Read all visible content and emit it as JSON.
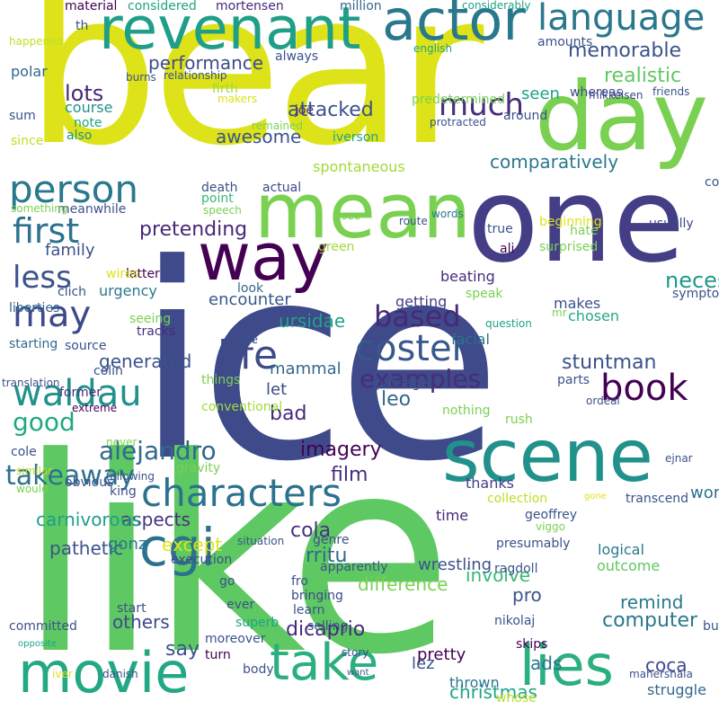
{
  "words": [
    {
      "t": "ice",
      "c": "#3e4a89"
    },
    {
      "t": "like",
      "c": "#5ec962"
    },
    {
      "t": "bear",
      "c": "#dde318"
    },
    {
      "t": "one",
      "c": "#433e85"
    },
    {
      "t": "mean",
      "c": "#7ad151"
    },
    {
      "t": "scene",
      "c": "#21918c"
    },
    {
      "t": "day",
      "c": "#7ad151"
    },
    {
      "t": "revenant",
      "c": "#1f9f88"
    },
    {
      "t": "actor",
      "c": "#2a788e"
    },
    {
      "t": "way",
      "c": "#440154"
    },
    {
      "t": "movie",
      "c": "#22a884"
    },
    {
      "t": "take",
      "c": "#2ab07f"
    },
    {
      "t": "lies",
      "c": "#2ab07f"
    },
    {
      "t": "cgi",
      "c": "#2c728e"
    },
    {
      "t": "characters",
      "c": "#2c728e"
    },
    {
      "t": "person",
      "c": "#2a788e"
    },
    {
      "t": "language",
      "c": "#2a788e"
    },
    {
      "t": "first",
      "c": "#2c728e"
    },
    {
      "t": "may",
      "c": "#3e4a89"
    },
    {
      "t": "life",
      "c": "#3e4a89"
    },
    {
      "t": "waldau",
      "c": "#21918c"
    },
    {
      "t": "coster",
      "c": "#38588c"
    },
    {
      "t": "book",
      "c": "#440154"
    },
    {
      "t": "based",
      "c": "#482878"
    },
    {
      "t": "less",
      "c": "#3b528b"
    },
    {
      "t": "much",
      "c": "#472d7b"
    },
    {
      "t": "takeaway",
      "c": "#2c728e"
    },
    {
      "t": "examples",
      "c": "#472d7b"
    },
    {
      "t": "alejandro",
      "c": "#31688e"
    },
    {
      "t": "good",
      "c": "#22a884"
    },
    {
      "t": "memorable",
      "c": "#3b528b"
    },
    {
      "t": "realistic",
      "c": "#5ec962"
    },
    {
      "t": "comparatively",
      "c": "#2a788e"
    },
    {
      "t": "awesome",
      "c": "#3b528b"
    },
    {
      "t": "attacked",
      "c": "#3b528b"
    },
    {
      "t": "pretending",
      "c": "#482878"
    },
    {
      "t": "stuntman",
      "c": "#3b528b"
    },
    {
      "t": "mammal",
      "c": "#31688e"
    },
    {
      "t": "ursidae",
      "c": "#20a386"
    },
    {
      "t": "generated",
      "c": "#3b528b"
    },
    {
      "t": "bad",
      "c": "#472d7b"
    },
    {
      "t": "family",
      "c": "#3b528b"
    },
    {
      "t": "lots",
      "c": "#482878"
    },
    {
      "t": "performance",
      "c": "#3e4a89"
    },
    {
      "t": "encounter",
      "c": "#38588c"
    },
    {
      "t": "necessarily",
      "c": "#1f9a8a"
    },
    {
      "t": "dicaprio",
      "c": "#482878"
    },
    {
      "t": "computer",
      "c": "#2a788e"
    },
    {
      "t": "remind",
      "c": "#2a788e"
    },
    {
      "t": "involve",
      "c": "#37b878"
    },
    {
      "t": "except",
      "c": "#dde318"
    },
    {
      "t": "aspects",
      "c": "#46327e"
    },
    {
      "t": "carnivorous",
      "c": "#1f9f88"
    },
    {
      "t": "pathetic",
      "c": "#3b528b"
    },
    {
      "t": "others",
      "c": "#3e4a89"
    },
    {
      "t": "say",
      "c": "#3b528b"
    },
    {
      "t": "wrestling",
      "c": "#3b528b"
    },
    {
      "t": "difference",
      "c": "#7ad151"
    },
    {
      "t": "leo",
      "c": "#31688e"
    },
    {
      "t": "let",
      "c": "#3e4a89"
    },
    {
      "t": "film",
      "c": "#472d7b"
    },
    {
      "t": "imagery",
      "c": "#440154"
    },
    {
      "t": "cola",
      "c": "#46327e"
    },
    {
      "t": "rritu",
      "c": "#31688e"
    },
    {
      "t": "gonz",
      "c": "#2a788e"
    },
    {
      "t": "pro",
      "c": "#3b528b"
    },
    {
      "t": "ads",
      "c": "#2c728e"
    },
    {
      "t": "coca",
      "c": "#3e4a89"
    },
    {
      "t": "christmas",
      "c": "#20a386"
    },
    {
      "t": "lez",
      "c": "#3b528b"
    },
    {
      "t": "pretty",
      "c": "#440154"
    },
    {
      "t": "worse",
      "c": "#2c728e"
    },
    {
      "t": "logical",
      "c": "#2a788e"
    },
    {
      "t": "outcome",
      "c": "#5ec962"
    },
    {
      "t": "thanks",
      "c": "#433e85"
    },
    {
      "t": "time",
      "c": "#482878"
    },
    {
      "t": "thrown",
      "c": "#2a788e"
    },
    {
      "t": "struggle",
      "c": "#31688e"
    },
    {
      "t": "facial",
      "c": "#2c728e"
    },
    {
      "t": "getting",
      "c": "#433e85"
    },
    {
      "t": "makes",
      "c": "#3b528b"
    },
    {
      "t": "chosen",
      "c": "#22a884"
    },
    {
      "t": "beating",
      "c": "#472d7b"
    },
    {
      "t": "polar",
      "c": "#31688e"
    },
    {
      "t": "course",
      "c": "#21918c"
    },
    {
      "t": "sum",
      "c": "#3b528b"
    },
    {
      "t": "also",
      "c": "#21918c"
    },
    {
      "t": "note",
      "c": "#20a386"
    },
    {
      "t": "seen",
      "c": "#1f9f88"
    },
    {
      "t": "around",
      "c": "#3b528b"
    },
    {
      "t": "whereas",
      "c": "#3e4a89"
    },
    {
      "t": "amounts",
      "c": "#3b528b"
    },
    {
      "t": "considered",
      "c": "#20a386"
    },
    {
      "t": "material",
      "c": "#440154"
    },
    {
      "t": "mortensen",
      "c": "#482878"
    },
    {
      "t": "million",
      "c": "#31688e"
    },
    {
      "t": "always",
      "c": "#3b528b"
    },
    {
      "t": "joe",
      "c": "#472d7b"
    },
    {
      "t": "iverson",
      "c": "#20a386"
    },
    {
      "t": "spontaneous",
      "c": "#a0da39"
    },
    {
      "t": "actual",
      "c": "#3e4a89"
    },
    {
      "t": "death",
      "c": "#3b528b"
    },
    {
      "t": "point",
      "c": "#37b878"
    },
    {
      "t": "speech",
      "c": "#7ad151"
    },
    {
      "t": "meanwhile",
      "c": "#3b528b"
    },
    {
      "t": "latter",
      "c": "#440154"
    },
    {
      "t": "urgency",
      "c": "#2a788e"
    },
    {
      "t": "wires",
      "c": "#dde318"
    },
    {
      "t": "liberties",
      "c": "#31688e"
    },
    {
      "t": "clich",
      "c": "#3b528b"
    },
    {
      "t": "look",
      "c": "#31688e"
    },
    {
      "t": "tracks",
      "c": "#472d7b"
    },
    {
      "t": "starting",
      "c": "#31688e"
    },
    {
      "t": "source",
      "c": "#3b528b"
    },
    {
      "t": "colin",
      "c": "#3b528b"
    },
    {
      "t": "things",
      "c": "#7ad151"
    },
    {
      "t": "former",
      "c": "#472d7b"
    },
    {
      "t": "extreme",
      "c": "#440154"
    },
    {
      "t": "conventional",
      "c": "#a0da39"
    },
    {
      "t": "passage",
      "c": "#3b528b"
    },
    {
      "t": "nothing",
      "c": "#7ad151"
    },
    {
      "t": "rush",
      "c": "#7ad151"
    },
    {
      "t": "parts",
      "c": "#3b528b"
    },
    {
      "t": "symptomatic",
      "c": "#3b528b"
    },
    {
      "t": "question",
      "c": "#20a386"
    },
    {
      "t": "usually",
      "c": "#3e4a89"
    },
    {
      "t": "consider",
      "c": "#3b528b"
    },
    {
      "t": "hate",
      "c": "#7ad151"
    },
    {
      "t": "ali",
      "c": "#440154"
    },
    {
      "t": "true",
      "c": "#3b528b"
    },
    {
      "t": "surprised",
      "c": "#7ad151"
    },
    {
      "t": "beginning",
      "c": "#dde318"
    },
    {
      "t": "predetermined",
      "c": "#7ad151"
    },
    {
      "t": "mikkelsen",
      "c": "#3e4a89"
    },
    {
      "t": "protracted",
      "c": "#3b528b"
    },
    {
      "t": "words",
      "c": "#2a788e"
    },
    {
      "t": "friends",
      "c": "#3b528b"
    },
    {
      "t": "relationship",
      "c": "#3b528b"
    },
    {
      "t": "firth",
      "c": "#a0da39"
    },
    {
      "t": "makers",
      "c": "#dde318"
    },
    {
      "t": "remained",
      "c": "#7ad151"
    },
    {
      "t": "burns",
      "c": "#3b528b"
    },
    {
      "t": "happened",
      "c": "#bddf26"
    },
    {
      "t": "th",
      "c": "#3b528b"
    },
    {
      "t": "english",
      "c": "#20a386"
    },
    {
      "t": "considerably",
      "c": "#20a386"
    },
    {
      "t": "since",
      "c": "#bddf26"
    },
    {
      "t": "something",
      "c": "#7ad151"
    },
    {
      "t": "see",
      "c": "#7ad151"
    },
    {
      "t": "green",
      "c": "#a0da39"
    },
    {
      "t": "route",
      "c": "#3b528b"
    },
    {
      "t": "speak",
      "c": "#7ad151"
    },
    {
      "t": "mr",
      "c": "#7ad151"
    },
    {
      "t": "trite",
      "c": "#3b528b"
    },
    {
      "t": "seeing",
      "c": "#7ad151"
    },
    {
      "t": "ordeal",
      "c": "#3b528b"
    },
    {
      "t": "translation",
      "c": "#3b528b"
    },
    {
      "t": "cole",
      "c": "#3b528b"
    },
    {
      "t": "never",
      "c": "#7ad151"
    },
    {
      "t": "similar",
      "c": "#bddf26"
    },
    {
      "t": "following",
      "c": "#3b528b"
    },
    {
      "t": "gravity",
      "c": "#7ad151"
    },
    {
      "t": "king",
      "c": "#3b528b"
    },
    {
      "t": "obvious",
      "c": "#3b528b"
    },
    {
      "t": "would",
      "c": "#7ad151"
    },
    {
      "t": "execution",
      "c": "#3e4a89"
    },
    {
      "t": "apparently",
      "c": "#3b528b"
    },
    {
      "t": "collection",
      "c": "#bddf26"
    },
    {
      "t": "transcend",
      "c": "#3b528b"
    },
    {
      "t": "gone",
      "c": "#dde318"
    },
    {
      "t": "viggo",
      "c": "#7ad151"
    },
    {
      "t": "geoffrey",
      "c": "#3b528b"
    },
    {
      "t": "ejnar",
      "c": "#3b528b"
    },
    {
      "t": "genre",
      "c": "#3b528b"
    },
    {
      "t": "presumably",
      "c": "#3b528b"
    },
    {
      "t": "ragdoll",
      "c": "#3b528b"
    },
    {
      "t": "fro",
      "c": "#3b528b"
    },
    {
      "t": "bringing",
      "c": "#3e4a89"
    },
    {
      "t": "learn",
      "c": "#3b528b"
    },
    {
      "t": "selling",
      "c": "#3b528b"
    },
    {
      "t": "go",
      "c": "#3b528b"
    },
    {
      "t": "situation",
      "c": "#3b528b"
    },
    {
      "t": "start",
      "c": "#3b528b"
    },
    {
      "t": "ever",
      "c": "#3b528b"
    },
    {
      "t": "superb",
      "c": "#20a386"
    },
    {
      "t": "moreover",
      "c": "#3b528b"
    },
    {
      "t": "nikolaj",
      "c": "#3b528b"
    },
    {
      "t": "skips",
      "c": "#440154"
    },
    {
      "t": "story",
      "c": "#3b528b"
    },
    {
      "t": "bucks",
      "c": "#3b528b"
    },
    {
      "t": "committed",
      "c": "#3b528b"
    },
    {
      "t": "opposite",
      "c": "#20a386"
    },
    {
      "t": "iver",
      "c": "#dde318"
    },
    {
      "t": "danish",
      "c": "#3b528b"
    },
    {
      "t": "turn",
      "c": "#440154"
    },
    {
      "t": "body",
      "c": "#3b528b"
    },
    {
      "t": "want",
      "c": "#3b528b"
    },
    {
      "t": "whose",
      "c": "#bddf26"
    },
    {
      "t": "mahershala",
      "c": "#3b528b"
    }
  ]
}
